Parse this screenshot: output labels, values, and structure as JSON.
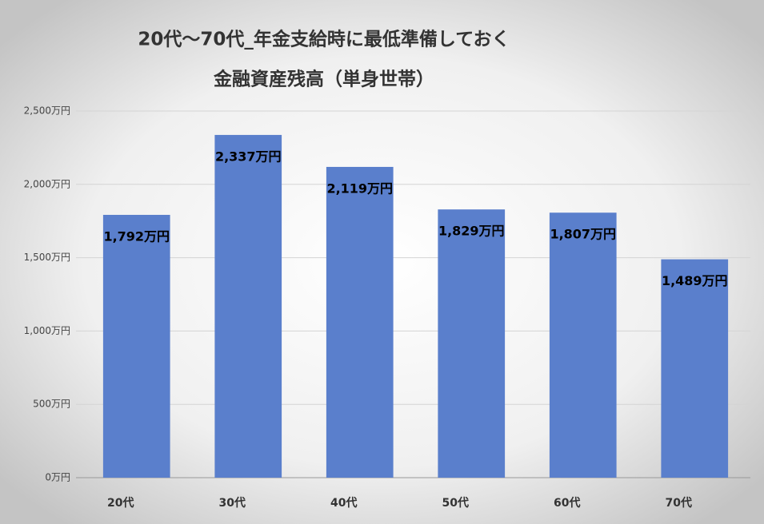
{
  "chart_data": {
    "type": "bar",
    "title": [
      "20代～70代_年金支給時に最低準備しておく",
      "金融資産残高（単身世帯）"
    ],
    "categories": [
      "20代",
      "30代",
      "40代",
      "50代",
      "60代",
      "70代"
    ],
    "values": [
      1792,
      2337,
      2119,
      1829,
      1807,
      1489
    ],
    "value_labels": [
      "1,792万円",
      "2,337万円",
      "2,119万円",
      "1,829万円",
      "1,807万円",
      "1,489万円"
    ],
    "color": "#5a7fcc",
    "ylim": [
      0,
      2500
    ],
    "yticks": [
      {
        "value": 0,
        "label": "0万円"
      },
      {
        "value": 500,
        "label": "500万円"
      },
      {
        "value": 1000,
        "label": "1,000万円"
      },
      {
        "value": 1500,
        "label": "1,500万円"
      },
      {
        "value": 2000,
        "label": "2,000万円"
      },
      {
        "value": 2500,
        "label": "2,500万円"
      }
    ],
    "grid": true
  }
}
